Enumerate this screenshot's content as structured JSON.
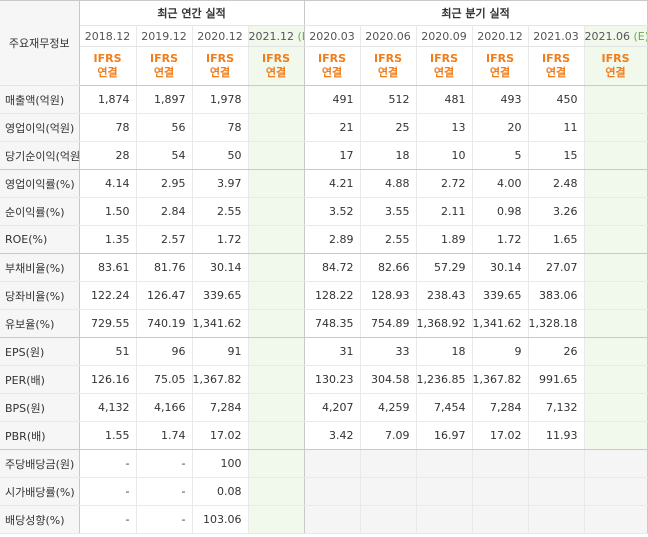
{
  "header": {
    "row_label": "주요재무정보",
    "annual_title": "최근 연간 실적",
    "quarterly_title": "최근 분기 실적",
    "annual_periods": [
      "2018.12",
      "2019.12",
      "2020.12",
      "2021.12"
    ],
    "annual_est_marker": "(E)",
    "quarterly_periods": [
      "2020.03",
      "2020.06",
      "2020.09",
      "2020.12",
      "2021.03",
      "2021.06"
    ],
    "quarterly_est_marker": "(E)",
    "ifrs_top": "IFRS",
    "ifrs_bottom": "연결"
  },
  "colors": {
    "estimate_bg": "#f0f9ec",
    "ifrs_text": "#f07d1c",
    "label_bg": "#f6f6f6",
    "no_data_bg": "#f5f5f5",
    "estimate_marker": "#6aa84f"
  },
  "rows": [
    {
      "label": "매출액(억원)",
      "annual": [
        "1,874",
        "1,897",
        "1,978",
        ""
      ],
      "quarterly": [
        "491",
        "512",
        "481",
        "493",
        "450",
        ""
      ]
    },
    {
      "label": "영업이익(억원)",
      "annual": [
        "78",
        "56",
        "78",
        ""
      ],
      "quarterly": [
        "21",
        "25",
        "13",
        "20",
        "11",
        ""
      ]
    },
    {
      "label": "당기순이익(억원)",
      "annual": [
        "28",
        "54",
        "50",
        ""
      ],
      "quarterly": [
        "17",
        "18",
        "10",
        "5",
        "15",
        ""
      ]
    },
    {
      "label": "영업이익률(%)",
      "annual": [
        "4.14",
        "2.95",
        "3.97",
        ""
      ],
      "quarterly": [
        "4.21",
        "4.88",
        "2.72",
        "4.00",
        "2.48",
        ""
      ]
    },
    {
      "label": "순이익률(%)",
      "annual": [
        "1.50",
        "2.84",
        "2.55",
        ""
      ],
      "quarterly": [
        "3.52",
        "3.55",
        "2.11",
        "0.98",
        "3.26",
        ""
      ]
    },
    {
      "label": "ROE(%)",
      "annual": [
        "1.35",
        "2.57",
        "1.72",
        ""
      ],
      "quarterly": [
        "2.89",
        "2.55",
        "1.89",
        "1.72",
        "1.65",
        ""
      ]
    },
    {
      "label": "부채비율(%)",
      "annual": [
        "83.61",
        "81.76",
        "30.14",
        ""
      ],
      "quarterly": [
        "84.72",
        "82.66",
        "57.29",
        "30.14",
        "27.07",
        ""
      ]
    },
    {
      "label": "당좌비율(%)",
      "annual": [
        "122.24",
        "126.47",
        "339.65",
        ""
      ],
      "quarterly": [
        "128.22",
        "128.93",
        "238.43",
        "339.65",
        "383.06",
        ""
      ]
    },
    {
      "label": "유보율(%)",
      "annual": [
        "729.55",
        "740.19",
        "1,341.62",
        ""
      ],
      "quarterly": [
        "748.35",
        "754.89",
        "1,368.92",
        "1,341.62",
        "1,328.18",
        ""
      ]
    },
    {
      "label": "EPS(원)",
      "annual": [
        "51",
        "96",
        "91",
        ""
      ],
      "quarterly": [
        "31",
        "33",
        "18",
        "9",
        "26",
        ""
      ]
    },
    {
      "label": "PER(배)",
      "annual": [
        "126.16",
        "75.05",
        "1,367.82",
        ""
      ],
      "quarterly": [
        "130.23",
        "304.58",
        "1,236.85",
        "1,367.82",
        "991.65",
        ""
      ]
    },
    {
      "label": "BPS(원)",
      "annual": [
        "4,132",
        "4,166",
        "7,284",
        ""
      ],
      "quarterly": [
        "4,207",
        "4,259",
        "7,454",
        "7,284",
        "7,132",
        ""
      ]
    },
    {
      "label": "PBR(배)",
      "annual": [
        "1.55",
        "1.74",
        "17.02",
        ""
      ],
      "quarterly": [
        "3.42",
        "7.09",
        "16.97",
        "17.02",
        "11.93",
        ""
      ]
    },
    {
      "label": "주당배당금(원)",
      "annual": [
        "-",
        "-",
        "100",
        ""
      ],
      "quarterly": [
        "",
        "",
        "",
        "",
        "",
        ""
      ]
    },
    {
      "label": "시가배당률(%)",
      "annual": [
        "-",
        "-",
        "0.08",
        ""
      ],
      "quarterly": [
        "",
        "",
        "",
        "",
        "",
        ""
      ]
    },
    {
      "label": "배당성향(%)",
      "annual": [
        "-",
        "-",
        "103.06",
        ""
      ],
      "quarterly": [
        "",
        "",
        "",
        "",
        "",
        ""
      ]
    }
  ]
}
